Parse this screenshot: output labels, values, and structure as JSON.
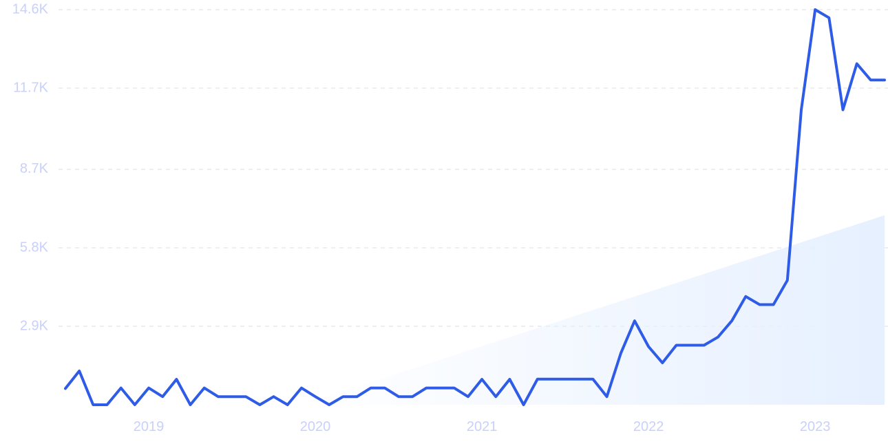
{
  "colors": {
    "line": "#2E5CE6",
    "grid": "#D9DEE8",
    "tick_label": "#C9D0FA",
    "trend_fill": "#E6F0FF",
    "background": "#FFFFFF"
  },
  "chart_data": {
    "type": "line",
    "title": "",
    "xlabel": "",
    "ylabel": "",
    "x_ticks": [
      {
        "label": "2019",
        "date": "2019-01"
      },
      {
        "label": "2020",
        "date": "2020-01"
      },
      {
        "label": "2021",
        "date": "2021-01"
      },
      {
        "label": "2022",
        "date": "2022-01"
      },
      {
        "label": "2023",
        "date": "2023-01"
      }
    ],
    "y_ticks": [
      {
        "label": "2.9K",
        "value": 2900
      },
      {
        "label": "5.8K",
        "value": 5800
      },
      {
        "label": "8.7K",
        "value": 8700
      },
      {
        "label": "11.7K",
        "value": 11700
      },
      {
        "label": "14.6K",
        "value": 14600
      }
    ],
    "xlim": [
      "2018-07",
      "2023-06"
    ],
    "ylim": [
      0,
      14600
    ],
    "grid": "horizontal dashed",
    "legend": "none",
    "series": [
      {
        "x": [
          "2018-07",
          "2018-08",
          "2018-09",
          "2018-10",
          "2018-11",
          "2018-12",
          "2019-01",
          "2019-02",
          "2019-03",
          "2019-04",
          "2019-05",
          "2019-06",
          "2019-07",
          "2019-08",
          "2019-09",
          "2019-10",
          "2019-11",
          "2019-12",
          "2020-01",
          "2020-02",
          "2020-03",
          "2020-04",
          "2020-05",
          "2020-06",
          "2020-07",
          "2020-08",
          "2020-09",
          "2020-10",
          "2020-11",
          "2020-12",
          "2021-01",
          "2021-02",
          "2021-03",
          "2021-04",
          "2021-05",
          "2021-06",
          "2021-07",
          "2021-08",
          "2021-09",
          "2021-10",
          "2021-11",
          "2021-12",
          "2022-01",
          "2022-02",
          "2022-03",
          "2022-04",
          "2022-05",
          "2022-06",
          "2022-07",
          "2022-08",
          "2022-09",
          "2022-10",
          "2022-11",
          "2022-12",
          "2023-01",
          "2023-02",
          "2023-03",
          "2023-04",
          "2023-05",
          "2023-06"
        ],
        "values": [
          600,
          1250,
          0,
          0,
          620,
          0,
          620,
          300,
          940,
          0,
          620,
          300,
          300,
          300,
          0,
          300,
          0,
          620,
          300,
          0,
          300,
          300,
          620,
          620,
          300,
          300,
          620,
          620,
          620,
          300,
          940,
          300,
          940,
          0,
          950,
          950,
          950,
          950,
          950,
          300,
          1900,
          3100,
          2150,
          1550,
          2200,
          2200,
          2200,
          2500,
          3100,
          4000,
          3700,
          3700,
          4600,
          10900,
          14600,
          14300,
          10900,
          12600,
          12000,
          12000
        ]
      }
    ],
    "trend": {
      "start": {
        "x": "2019-12",
        "value": 0
      },
      "end": {
        "x": "2023-06",
        "value": 7000
      }
    }
  }
}
